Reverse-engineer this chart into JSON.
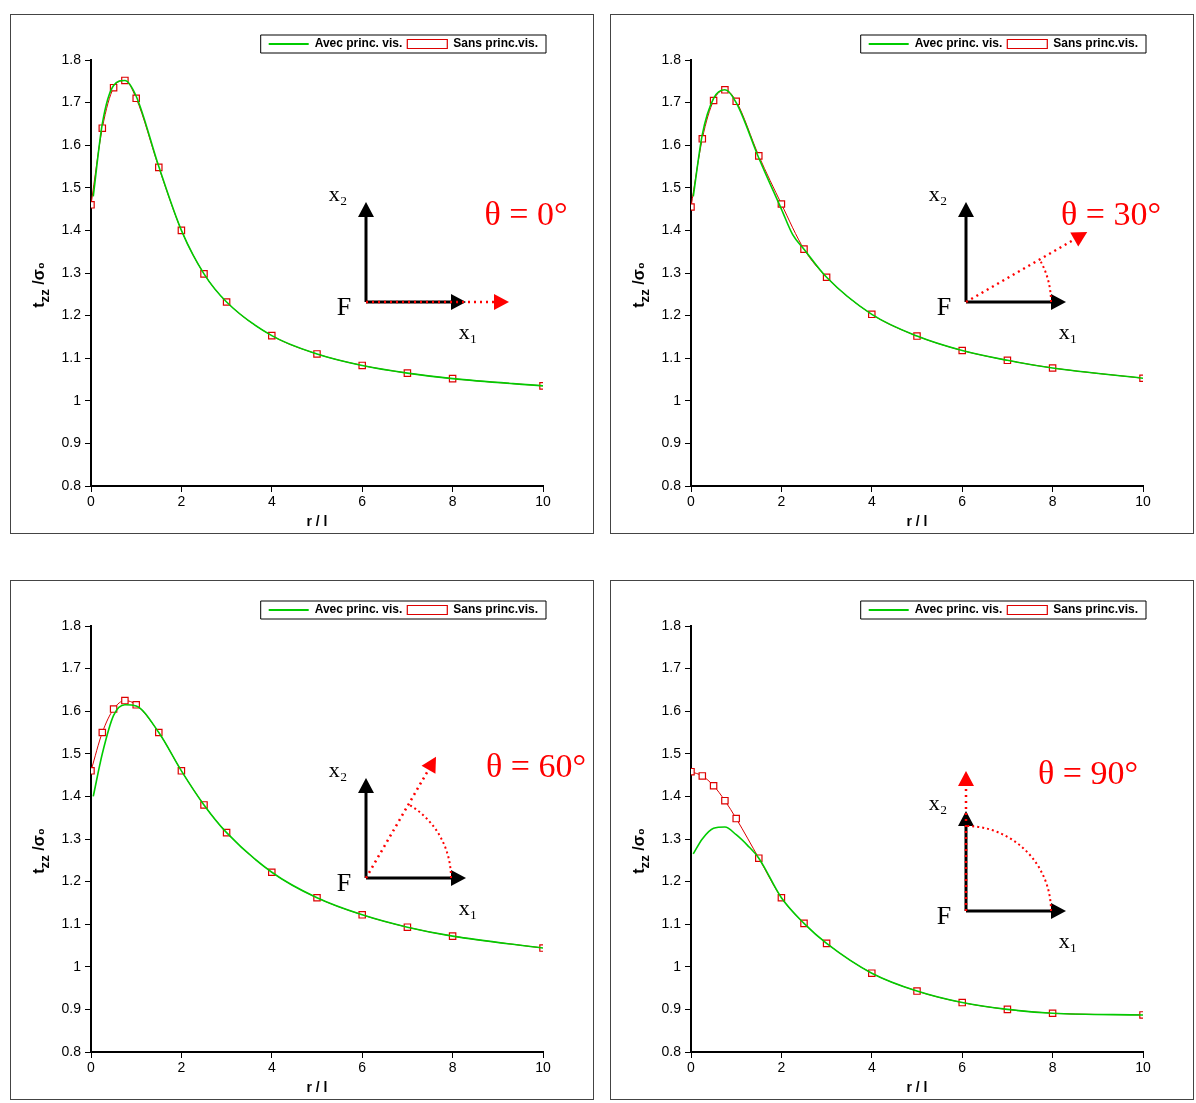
{
  "chart_data": [
    {
      "type": "line",
      "xlabel": "r / l",
      "ylabel": "t$_{zz}$ /σ₀",
      "xlim": [
        0,
        10
      ],
      "xticks": [
        0,
        2,
        4,
        6,
        8,
        10
      ],
      "ylim": [
        0.8,
        1.8
      ],
      "yticks": [
        0.8,
        0.9,
        1,
        1.1,
        1.2,
        1.3,
        1.4,
        1.5,
        1.6,
        1.7,
        1.8
      ],
      "grid": false,
      "legend": "top right",
      "annotations": [
        "x₂",
        "x₁",
        "F",
        "θ = 0°"
      ],
      "series": [
        {
          "name": "Avec princ. vis.",
          "color": "#00cc00",
          "marker": "none",
          "x": [
            0.05,
            0.25,
            0.5,
            0.75,
            1,
            1.5,
            2,
            2.5,
            3,
            4,
            5,
            6,
            7,
            8,
            10
          ],
          "values": [
            1.48,
            1.65,
            1.74,
            1.752,
            1.715,
            1.55,
            1.4,
            1.298,
            1.232,
            1.153,
            1.11,
            1.083,
            1.065,
            1.052,
            1.035
          ]
        },
        {
          "name": "Sans princ.vis.",
          "color": "#dd0000",
          "marker": "square",
          "x": [
            0,
            0.25,
            0.5,
            0.75,
            1,
            1.5,
            2,
            2.5,
            3,
            4,
            5,
            6,
            7,
            8,
            10
          ],
          "values": [
            1.46,
            1.64,
            1.735,
            1.752,
            1.71,
            1.548,
            1.4,
            1.298,
            1.232,
            1.153,
            1.11,
            1.083,
            1.065,
            1.052,
            1.035
          ]
        }
      ]
    },
    {
      "type": "line",
      "xlabel": "r / l",
      "ylabel": "t$_{zz}$ /σ₀",
      "xlim": [
        0,
        10
      ],
      "xticks": [
        0,
        2,
        4,
        6,
        8,
        10
      ],
      "ylim": [
        0.8,
        1.8
      ],
      "yticks": [
        0.8,
        0.9,
        1,
        1.1,
        1.2,
        1.3,
        1.4,
        1.5,
        1.6,
        1.7,
        1.8
      ],
      "grid": false,
      "legend": "top right",
      "annotations": [
        "x₂",
        "x₁",
        "F",
        "θ = 30°"
      ],
      "series": [
        {
          "name": "Avec princ. vis.",
          "color": "#00cc00",
          "marker": "none",
          "x": [
            0.05,
            0.25,
            0.5,
            0.75,
            1,
            1.5,
            2,
            2.25,
            2.5,
            3,
            4,
            5,
            6,
            7,
            8,
            10
          ],
          "values": [
            1.48,
            1.625,
            1.71,
            1.73,
            1.7,
            1.57,
            1.45,
            1.39,
            1.356,
            1.29,
            1.203,
            1.152,
            1.118,
            1.095,
            1.077,
            1.053
          ]
        },
        {
          "name": "Sans princ.vis.",
          "color": "#dd0000",
          "marker": "square",
          "x": [
            0,
            0.25,
            0.5,
            0.75,
            1,
            1.5,
            2,
            2.5,
            3,
            4,
            5,
            6,
            7,
            8,
            10
          ],
          "values": [
            1.455,
            1.615,
            1.705,
            1.73,
            1.703,
            1.575,
            1.462,
            1.356,
            1.29,
            1.203,
            1.152,
            1.118,
            1.095,
            1.077,
            1.053
          ]
        }
      ]
    },
    {
      "type": "line",
      "xlabel": "r / l",
      "ylabel": "t$_{zz}$ /σ₀",
      "xlim": [
        0,
        10
      ],
      "xticks": [
        0,
        2,
        4,
        6,
        8,
        10
      ],
      "ylim": [
        0.8,
        1.8
      ],
      "yticks": [
        0.8,
        0.9,
        1,
        1.1,
        1.2,
        1.3,
        1.4,
        1.5,
        1.6,
        1.7,
        1.8
      ],
      "grid": false,
      "legend": "top right",
      "annotations": [
        "x₂",
        "x₁",
        "F",
        "θ = 60°"
      ],
      "series": [
        {
          "name": "Avec princ. vis.",
          "color": "#00cc00",
          "marker": "none",
          "x": [
            0.05,
            0.25,
            0.5,
            0.75,
            1,
            1.5,
            2,
            2.5,
            3,
            4,
            5,
            6,
            7,
            8,
            10
          ],
          "values": [
            1.4,
            1.5,
            1.59,
            1.615,
            1.612,
            1.55,
            1.46,
            1.38,
            1.315,
            1.222,
            1.162,
            1.122,
            1.093,
            1.072,
            1.044
          ]
        },
        {
          "name": "Sans princ.vis.",
          "color": "#dd0000",
          "marker": "square",
          "x": [
            0,
            0.25,
            0.5,
            0.75,
            1,
            1.5,
            2,
            2.5,
            3,
            4,
            5,
            6,
            7,
            8,
            10
          ],
          "values": [
            1.46,
            1.55,
            1.605,
            1.625,
            1.615,
            1.55,
            1.46,
            1.38,
            1.315,
            1.222,
            1.162,
            1.122,
            1.093,
            1.072,
            1.044
          ]
        }
      ]
    },
    {
      "type": "line",
      "xlabel": "r / l",
      "ylabel": "t$_{zz}$ /σ₀",
      "xlim": [
        0,
        10
      ],
      "xticks": [
        0,
        2,
        4,
        6,
        8,
        10
      ],
      "ylim": [
        0.8,
        1.8
      ],
      "yticks": [
        0.8,
        0.9,
        1,
        1.1,
        1.2,
        1.3,
        1.4,
        1.5,
        1.6,
        1.7,
        1.8
      ],
      "grid": false,
      "legend": "top right",
      "annotations": [
        "x₂",
        "x₁",
        "F",
        "θ = 90°"
      ],
      "series": [
        {
          "name": "Avec princ. vis.",
          "color": "#00cc00",
          "marker": "none",
          "x": [
            0.05,
            0.25,
            0.5,
            0.75,
            1,
            1.25,
            1.5,
            2,
            2.5,
            3,
            4,
            5,
            6,
            7,
            8,
            10
          ],
          "values": [
            1.265,
            1.3,
            1.325,
            1.328,
            1.31,
            1.285,
            1.255,
            1.162,
            1.102,
            1.055,
            0.985,
            0.943,
            0.916,
            0.9,
            0.891,
            0.887
          ]
        },
        {
          "name": "Sans princ.vis.",
          "color": "#dd0000",
          "marker": "square",
          "x": [
            0,
            0.25,
            0.5,
            0.75,
            1,
            1.5,
            2,
            2.5,
            3,
            4,
            5,
            6,
            7,
            8,
            10
          ],
          "values": [
            1.458,
            1.448,
            1.425,
            1.39,
            1.348,
            1.255,
            1.162,
            1.102,
            1.055,
            0.985,
            0.943,
            0.916,
            0.9,
            0.891,
            0.887
          ]
        }
      ]
    }
  ]
}
